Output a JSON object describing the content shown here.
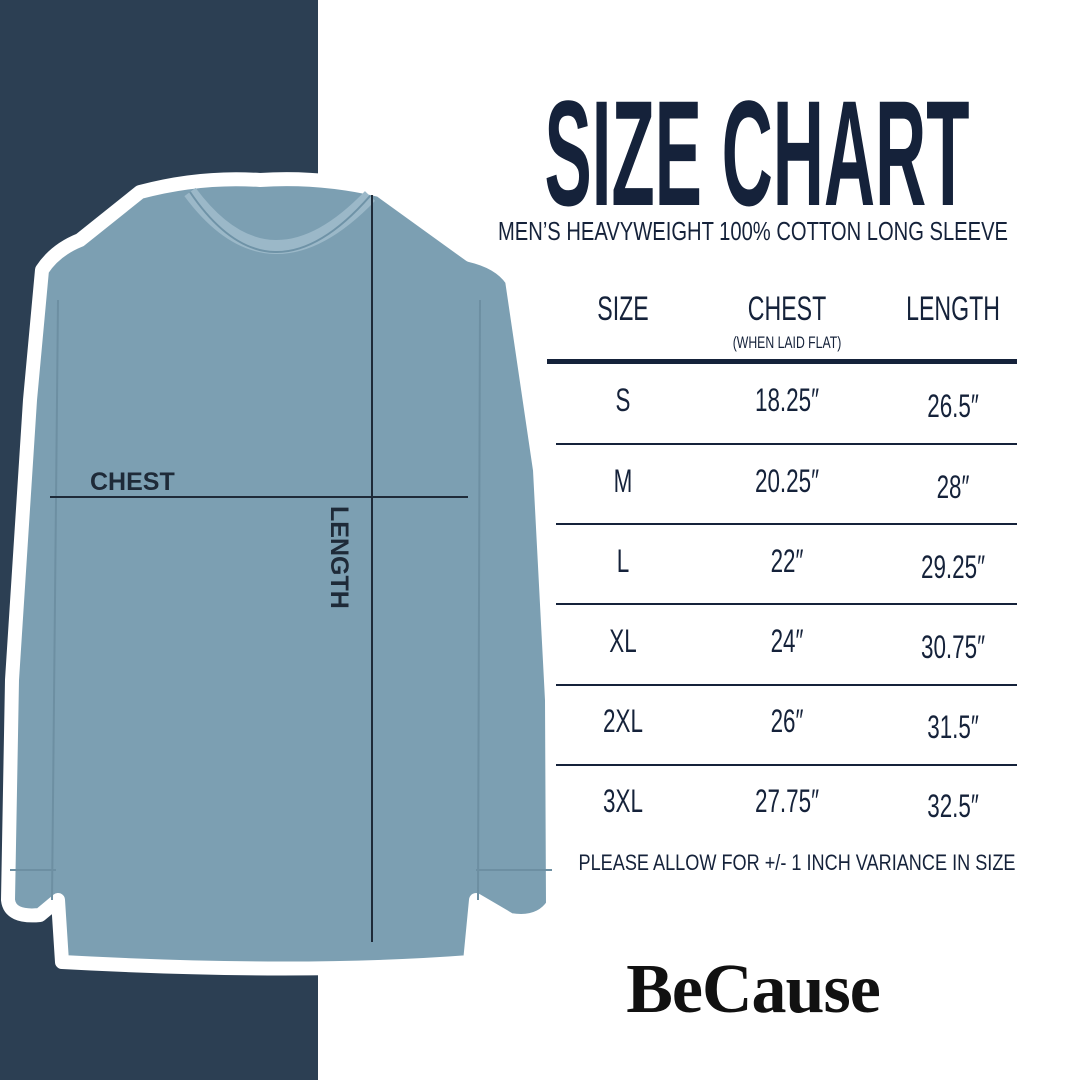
{
  "title": "SIZE CHART",
  "subtitle": "MEN’S HEAVYWEIGHT 100% COTTON LONG SLEEVE",
  "colors": {
    "navy_panel": "#2c3f53",
    "shirt": "#7c9fb2",
    "text": "#15223a"
  },
  "diagram": {
    "chest_label": "CHEST",
    "length_label": "LENGTH"
  },
  "table": {
    "headers": {
      "size": "SIZE",
      "chest": "CHEST",
      "chest_note": "(WHEN LAID FLAT)",
      "length": "LENGTH"
    },
    "rows": [
      {
        "size": "S",
        "chest": "18.25″",
        "length": "26.5″"
      },
      {
        "size": "M",
        "chest": "20.25″",
        "length": "28″"
      },
      {
        "size": "L",
        "chest": "22″",
        "length": "29.25″"
      },
      {
        "size": "XL",
        "chest": "24″",
        "length": "30.75″"
      },
      {
        "size": "2XL",
        "chest": "26″",
        "length": "31.5″"
      },
      {
        "size": "3XL",
        "chest": "27.75″",
        "length": "32.5″"
      }
    ]
  },
  "note": "PLEASE ALLOW FOR +/- 1 INCH VARIANCE IN SIZE",
  "brand": "BeCause"
}
